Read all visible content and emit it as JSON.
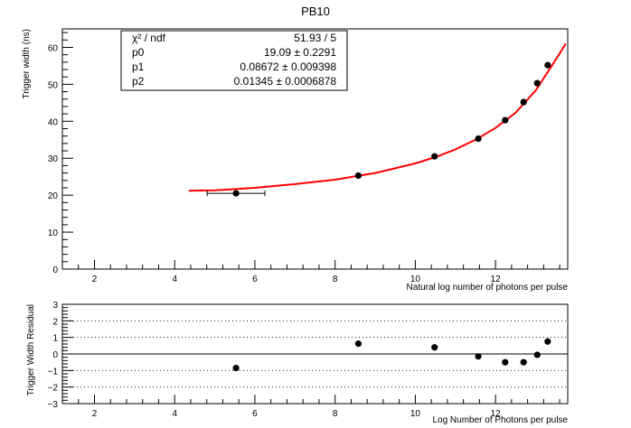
{
  "chart_data": [
    {
      "type": "scatter",
      "title": "PB10",
      "xlabel": "Natural log number of photons per pulse",
      "ylabel": "Trigger width (ns)",
      "xlim": [
        1.2,
        13.8
      ],
      "ylim": [
        0,
        65
      ],
      "x_ticks": [
        "2",
        "4",
        "6",
        "8",
        "10",
        "12"
      ],
      "y_ticks": [
        "0",
        "10",
        "20",
        "30",
        "40",
        "50",
        "60"
      ],
      "grid": false,
      "fit_color": "#ff0000",
      "point_color": "#000000",
      "points": [
        {
          "x": 5.53,
          "y": 20.5,
          "xerr": 0.72
        },
        {
          "x": 8.58,
          "y": 25.3,
          "xerr": 0
        },
        {
          "x": 10.48,
          "y": 30.5,
          "xerr": 0
        },
        {
          "x": 11.57,
          "y": 35.3,
          "xerr": 0
        },
        {
          "x": 12.24,
          "y": 40.3,
          "xerr": 0
        },
        {
          "x": 12.7,
          "y": 45.2,
          "xerr": 0
        },
        {
          "x": 13.04,
          "y": 50.3,
          "xerr": 0
        },
        {
          "x": 13.3,
          "y": 55.2,
          "xerr": 0
        }
      ],
      "fit_range": [
        4.35,
        13.75
      ],
      "fit_points": [
        {
          "x": 4.35,
          "y": 21.2
        },
        {
          "x": 5.0,
          "y": 21.3
        },
        {
          "x": 6.0,
          "y": 22.0
        },
        {
          "x": 7.0,
          "y": 23.0
        },
        {
          "x": 8.0,
          "y": 24.2
        },
        {
          "x": 9.0,
          "y": 26.0
        },
        {
          "x": 10.0,
          "y": 28.6
        },
        {
          "x": 10.5,
          "y": 30.3
        },
        {
          "x": 11.0,
          "y": 32.4
        },
        {
          "x": 11.5,
          "y": 35.0
        },
        {
          "x": 12.0,
          "y": 38.2
        },
        {
          "x": 12.5,
          "y": 42.3
        },
        {
          "x": 13.0,
          "y": 48.3
        },
        {
          "x": 13.3,
          "y": 53.3
        },
        {
          "x": 13.55,
          "y": 57.5
        },
        {
          "x": 13.75,
          "y": 61.0
        }
      ],
      "stats": [
        {
          "label": "χ² / ndf",
          "value": "51.93 / 5"
        },
        {
          "label": "p0",
          "value": "19.09 ± 0.2291"
        },
        {
          "label": "p1",
          "value": "0.08672 ± 0.009398"
        },
        {
          "label": "p2",
          "value": "0.01345 ± 0.0006878"
        }
      ]
    },
    {
      "type": "scatter",
      "title": "",
      "xlabel": "Log Number of Photons per pulse",
      "ylabel": "Trigger Width Residual",
      "xlim": [
        1.2,
        13.8
      ],
      "ylim": [
        -3,
        3
      ],
      "x_ticks": [
        "2",
        "4",
        "6",
        "8",
        "10",
        "12"
      ],
      "y_ticks": [
        "−3",
        "−2",
        "−1",
        "0",
        "1",
        "2",
        "3"
      ],
      "grid": true,
      "grid_style": "dotted horizontal at each integer",
      "zero_line": true,
      "points": [
        {
          "x": 5.53,
          "y": -0.85
        },
        {
          "x": 8.58,
          "y": 0.62
        },
        {
          "x": 10.48,
          "y": 0.4
        },
        {
          "x": 11.57,
          "y": -0.15
        },
        {
          "x": 12.24,
          "y": -0.5
        },
        {
          "x": 12.7,
          "y": -0.5
        },
        {
          "x": 13.04,
          "y": -0.05
        },
        {
          "x": 13.3,
          "y": 0.75
        }
      ]
    }
  ]
}
